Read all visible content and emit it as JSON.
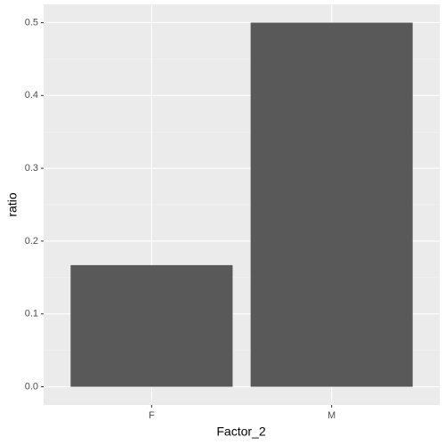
{
  "chart_data": {
    "type": "bar",
    "categories": [
      "F",
      "M"
    ],
    "values": [
      0.167,
      0.5
    ],
    "color": "#595959",
    "x_label": "Factor_2",
    "y_label": "ratio",
    "ylim": [
      -0.025,
      0.525
    ],
    "yticks": [
      {
        "value": 0,
        "label": "0.0"
      },
      {
        "value": 0.1,
        "label": "0.1"
      },
      {
        "value": 0.2,
        "label": "0.2"
      },
      {
        "value": 0.3,
        "label": "0.3"
      },
      {
        "value": 0.4,
        "label": "0.4"
      },
      {
        "value": 0.5,
        "label": "0.5"
      }
    ],
    "grid": true
  }
}
